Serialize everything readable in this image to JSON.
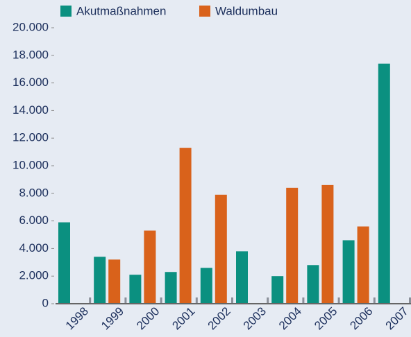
{
  "chart_data": {
    "type": "bar",
    "categories": [
      "1998",
      "1999",
      "2000",
      "2001",
      "2002",
      "2003",
      "2004",
      "2005",
      "2006",
      "2007"
    ],
    "series": [
      {
        "name": "Akutmaßnahmen",
        "color": "#0b9080",
        "values": [
          5900,
          3400,
          2100,
          2300,
          2600,
          3800,
          2000,
          2800,
          4600,
          17400
        ]
      },
      {
        "name": "Waldumbau",
        "color": "#d9621b",
        "values": [
          null,
          3200,
          5300,
          11300,
          7900,
          null,
          8400,
          8600,
          5600,
          null
        ]
      }
    ],
    "ylim": [
      0,
      20000
    ],
    "yticks": [
      0,
      {
        "value": 2000,
        "label": "2.000"
      },
      {
        "value": 4000,
        "label": "4.000"
      },
      {
        "value": 6000,
        "label": "6.000"
      },
      {
        "value": 8000,
        "label": "8.000"
      },
      {
        "value": 10000,
        "label": "10.000"
      },
      {
        "value": 12000,
        "label": "12.000"
      },
      {
        "value": 14000,
        "label": "14.000"
      },
      {
        "value": 16000,
        "label": "16.000"
      },
      {
        "value": 18000,
        "label": "18.000"
      },
      {
        "value": 20000,
        "label": "20.000"
      }
    ],
    "legend": "top",
    "grid": false
  }
}
